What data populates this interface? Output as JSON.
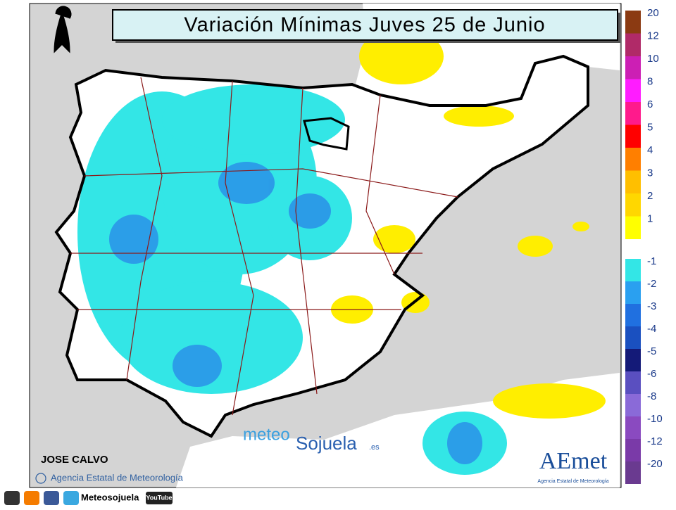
{
  "header": {
    "title": "Variación Mínimas Juves 25 de Junio"
  },
  "legend": {
    "items": [
      {
        "label": 20,
        "color": "#8b3a12"
      },
      {
        "label": 12,
        "color": "#b02a68"
      },
      {
        "label": 10,
        "color": "#cc1fb4"
      },
      {
        "label": 8,
        "color": "#ff1cff"
      },
      {
        "label": 6,
        "color": "#ff1a8c"
      },
      {
        "label": 5,
        "color": "#ff0000"
      },
      {
        "label": 4,
        "color": "#ff7f00"
      },
      {
        "label": 3,
        "color": "#ffbf00"
      },
      {
        "label": 2,
        "color": "#ffd700"
      },
      {
        "label": 1,
        "color": "#ffff00"
      },
      {
        "label": -1,
        "color": "#33e6e6"
      },
      {
        "label": -2,
        "color": "#2aa0f0"
      },
      {
        "label": -3,
        "color": "#2070e0"
      },
      {
        "label": -4,
        "color": "#1a50c0"
      },
      {
        "label": -5,
        "color": "#141a78"
      },
      {
        "label": -6,
        "color": "#5a4fc0"
      },
      {
        "label": -8,
        "color": "#8a6ad8"
      },
      {
        "label": -10,
        "color": "#8a4ac0"
      },
      {
        "label": -12,
        "color": "#7a3aa8"
      },
      {
        "label": -20,
        "color": "#6a3a90"
      }
    ]
  },
  "credits": {
    "author": "JOSE CALVO",
    "agency": "Agencia Estatal de Meteorología",
    "watermark": {
      "meteo": "meteo",
      "name": "Sojuela",
      "domain": ".es"
    },
    "logo": {
      "name": "AEmet",
      "subtitle": "Agencia Estatal de Meteorología"
    }
  },
  "footer": {
    "site": "Meteosojuela",
    "video": "YouTube"
  }
}
